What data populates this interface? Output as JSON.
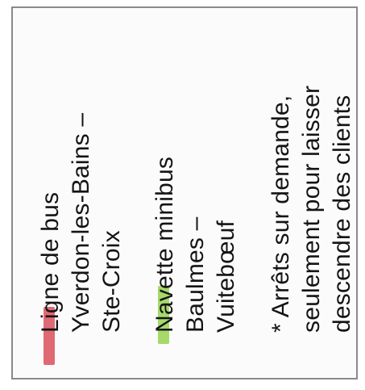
{
  "legend": {
    "items": [
      {
        "lines": [
          "Ligne de bus",
          "Yverdon-les-Bains –",
          "Ste-Croix"
        ],
        "color": "#e06a73"
      },
      {
        "lines": [
          "Navette minibus",
          "Baulmes –",
          "Vuitebœuf"
        ],
        "color": "#a6d96a"
      }
    ],
    "note": {
      "lines": [
        "* Arrêts sur demande,",
        "seulement pour laisser",
        "descendre des clients"
      ]
    }
  }
}
